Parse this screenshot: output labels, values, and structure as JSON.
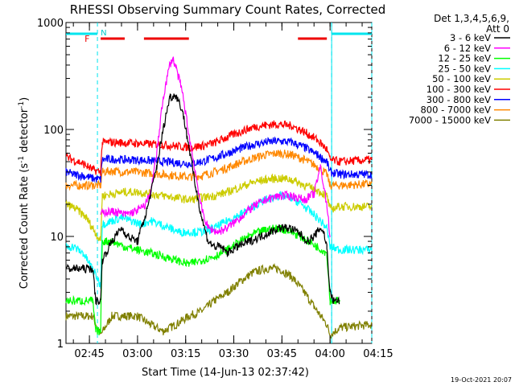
{
  "chart_data": {
    "type": "line",
    "title": "RHESSI Observing Summary Count Rates, Corrected",
    "xlabel": "Start Time (14-Jun-13 02:37:42)",
    "ylabel_main": "Corrected Count Rate (s",
    "ylabel_exp1": "-1",
    "ylabel_mid": " detector",
    "ylabel_exp2": "-1",
    "ylabel_end": ")",
    "ylog": true,
    "ylim": [
      1,
      1000
    ],
    "xlim_min": [
      37.7,
      133
    ],
    "x_ticks": [
      {
        "t": 45,
        "label": "02:45"
      },
      {
        "t": 60,
        "label": "03:00"
      },
      {
        "t": 75,
        "label": "03:15"
      },
      {
        "t": 90,
        "label": "03:30"
      },
      {
        "t": 105,
        "label": "03:45"
      },
      {
        "t": 120,
        "label": "04:00"
      },
      {
        "t": 135,
        "label": "04:15"
      }
    ],
    "y_ticks": [
      {
        "v": 1,
        "label": "1"
      },
      {
        "v": 10,
        "label": "10"
      },
      {
        "v": 100,
        "label": "100"
      },
      {
        "v": 1000,
        "label": "1000"
      }
    ],
    "legend_header": [
      "Det 1,3,4,5,6,9,",
      "Att 0"
    ],
    "series": [
      {
        "name": "3 - 6 keV",
        "color": "#000000",
        "points": [
          [
            37.7,
            5
          ],
          [
            46,
            5
          ],
          [
            47,
            2.5
          ],
          [
            48.5,
            2.5
          ],
          [
            49,
            6
          ],
          [
            52,
            9
          ],
          [
            55,
            12
          ],
          [
            57,
            10
          ],
          [
            60,
            9
          ],
          [
            63,
            18
          ],
          [
            66,
            45
          ],
          [
            68,
            100
          ],
          [
            70,
            200
          ],
          [
            72,
            210
          ],
          [
            74,
            150
          ],
          [
            76,
            70
          ],
          [
            78,
            30
          ],
          [
            80,
            15
          ],
          [
            82,
            9
          ],
          [
            84,
            8
          ],
          [
            86,
            8
          ],
          [
            88,
            7
          ],
          [
            91,
            8
          ],
          [
            95,
            9
          ],
          [
            100,
            10.5
          ],
          [
            104,
            12
          ],
          [
            107,
            12
          ],
          [
            110,
            11
          ],
          [
            113,
            9
          ],
          [
            115,
            10
          ],
          [
            117,
            12
          ],
          [
            118,
            11
          ],
          [
            119,
            8
          ],
          [
            120,
            3
          ],
          [
            121,
            2.5
          ],
          [
            123,
            2.5
          ]
        ]
      },
      {
        "name": "6 - 12 keV",
        "color": "#ff00ff",
        "points": [
          [
            48.5,
            16
          ],
          [
            50,
            17
          ],
          [
            53,
            17
          ],
          [
            56,
            16
          ],
          [
            59,
            17
          ],
          [
            62,
            19
          ],
          [
            64,
            25
          ],
          [
            66,
            60
          ],
          [
            68,
            200
          ],
          [
            70,
            400
          ],
          [
            71,
            460
          ],
          [
            72,
            380
          ],
          [
            74,
            220
          ],
          [
            76,
            90
          ],
          [
            78,
            40
          ],
          [
            80,
            18
          ],
          [
            82,
            12
          ],
          [
            85,
            11
          ],
          [
            88,
            12
          ],
          [
            92,
            15
          ],
          [
            96,
            19
          ],
          [
            100,
            22
          ],
          [
            104,
            24
          ],
          [
            108,
            24
          ],
          [
            112,
            22
          ],
          [
            115,
            25
          ],
          [
            117,
            45
          ],
          [
            118,
            30
          ],
          [
            119,
            20
          ],
          [
            120,
            10
          ]
        ]
      },
      {
        "name": "12 - 25 keV",
        "color": "#00ff00",
        "points": [
          [
            37.7,
            2.5
          ],
          [
            46,
            2.5
          ],
          [
            47,
            1.3
          ],
          [
            48.5,
            1.3
          ],
          [
            49,
            9
          ],
          [
            52,
            9
          ],
          [
            56,
            8
          ],
          [
            60,
            7.5
          ],
          [
            64,
            7
          ],
          [
            68,
            6.5
          ],
          [
            72,
            6
          ],
          [
            76,
            5.5
          ],
          [
            80,
            6
          ],
          [
            84,
            6.5
          ],
          [
            88,
            7.5
          ],
          [
            92,
            9
          ],
          [
            96,
            10.5
          ],
          [
            100,
            11.5
          ],
          [
            104,
            12
          ],
          [
            108,
            11
          ],
          [
            112,
            9.5
          ],
          [
            116,
            8
          ],
          [
            119,
            7
          ],
          [
            120,
            2.5
          ],
          [
            121,
            2.5
          ],
          [
            123,
            2.5
          ]
        ]
      },
      {
        "name": "25 - 50 keV",
        "color": "#00ffff",
        "points": [
          [
            37.7,
            8
          ],
          [
            40,
            8
          ],
          [
            43,
            7
          ],
          [
            46,
            5
          ],
          [
            48.5,
            3.5
          ],
          [
            49,
            13
          ],
          [
            52,
            14
          ],
          [
            55,
            15
          ],
          [
            58,
            14
          ],
          [
            61,
            13
          ],
          [
            64,
            14
          ],
          [
            67,
            13
          ],
          [
            70,
            12
          ],
          [
            73,
            11
          ],
          [
            76,
            11
          ],
          [
            80,
            11
          ],
          [
            84,
            12
          ],
          [
            88,
            14
          ],
          [
            92,
            16
          ],
          [
            96,
            19
          ],
          [
            100,
            22
          ],
          [
            104,
            24
          ],
          [
            108,
            23
          ],
          [
            112,
            19
          ],
          [
            116,
            15
          ],
          [
            119,
            12
          ],
          [
            120,
            8
          ],
          [
            123,
            7.5
          ],
          [
            133,
            7.5
          ]
        ]
      },
      {
        "name": "50 - 100 keV",
        "color": "#cccc00",
        "points": [
          [
            37.7,
            20
          ],
          [
            41,
            18
          ],
          [
            44,
            15
          ],
          [
            46,
            12
          ],
          [
            48.5,
            9
          ],
          [
            49,
            24
          ],
          [
            52,
            25
          ],
          [
            56,
            26
          ],
          [
            60,
            26
          ],
          [
            64,
            25
          ],
          [
            68,
            24
          ],
          [
            72,
            23
          ],
          [
            76,
            22
          ],
          [
            80,
            23
          ],
          [
            84,
            24
          ],
          [
            88,
            26
          ],
          [
            92,
            29
          ],
          [
            96,
            32
          ],
          [
            100,
            34
          ],
          [
            104,
            35
          ],
          [
            108,
            34
          ],
          [
            112,
            30
          ],
          [
            116,
            27
          ],
          [
            119,
            24
          ],
          [
            120,
            18
          ],
          [
            123,
            19
          ],
          [
            133,
            19
          ]
        ]
      },
      {
        "name": "100 - 300 keV",
        "color": "#ff0000",
        "points": [
          [
            37.7,
            55
          ],
          [
            40,
            52
          ],
          [
            43,
            48
          ],
          [
            46,
            42
          ],
          [
            48.5,
            40
          ],
          [
            49,
            75
          ],
          [
            52,
            76
          ],
          [
            56,
            75
          ],
          [
            60,
            74
          ],
          [
            64,
            73
          ],
          [
            68,
            72
          ],
          [
            72,
            70
          ],
          [
            76,
            68
          ],
          [
            80,
            70
          ],
          [
            84,
            75
          ],
          [
            88,
            85
          ],
          [
            92,
            95
          ],
          [
            96,
            105
          ],
          [
            100,
            110
          ],
          [
            104,
            112
          ],
          [
            108,
            108
          ],
          [
            112,
            95
          ],
          [
            116,
            80
          ],
          [
            119,
            65
          ],
          [
            120,
            52
          ],
          [
            123,
            50
          ],
          [
            133,
            52
          ]
        ]
      },
      {
        "name": "300 - 800 keV",
        "color": "#0000ff",
        "points": [
          [
            37.7,
            40
          ],
          [
            40,
            38
          ],
          [
            43,
            37
          ],
          [
            46,
            35
          ],
          [
            48.5,
            34
          ],
          [
            49,
            52
          ],
          [
            52,
            53
          ],
          [
            56,
            52
          ],
          [
            60,
            52
          ],
          [
            64,
            51
          ],
          [
            68,
            50
          ],
          [
            72,
            49
          ],
          [
            76,
            48
          ],
          [
            80,
            50
          ],
          [
            84,
            54
          ],
          [
            88,
            60
          ],
          [
            92,
            66
          ],
          [
            96,
            72
          ],
          [
            100,
            76
          ],
          [
            104,
            78
          ],
          [
            108,
            76
          ],
          [
            112,
            68
          ],
          [
            116,
            58
          ],
          [
            119,
            50
          ],
          [
            120,
            40
          ],
          [
            123,
            38
          ],
          [
            133,
            38
          ]
        ]
      },
      {
        "name": "800 - 7000 keV",
        "color": "#ff8800",
        "points": [
          [
            37.7,
            30
          ],
          [
            41,
            30
          ],
          [
            44,
            30
          ],
          [
            46,
            30
          ],
          [
            48.5,
            30
          ],
          [
            49,
            40
          ],
          [
            52,
            41
          ],
          [
            56,
            40
          ],
          [
            60,
            40
          ],
          [
            64,
            39
          ],
          [
            68,
            38
          ],
          [
            72,
            37
          ],
          [
            76,
            36
          ],
          [
            80,
            37
          ],
          [
            84,
            40
          ],
          [
            88,
            44
          ],
          [
            92,
            49
          ],
          [
            96,
            54
          ],
          [
            100,
            58
          ],
          [
            104,
            60
          ],
          [
            108,
            58
          ],
          [
            112,
            52
          ],
          [
            116,
            45
          ],
          [
            119,
            38
          ],
          [
            120,
            30
          ],
          [
            123,
            30
          ],
          [
            133,
            31
          ]
        ]
      },
      {
        "name": "7000 - 15000 keV",
        "color": "#808000",
        "points": [
          [
            37.7,
            1.8
          ],
          [
            46,
            1.8
          ],
          [
            48.5,
            1.2
          ],
          [
            52,
            1.8
          ],
          [
            56,
            1.8
          ],
          [
            60,
            1.8
          ],
          [
            64,
            1.5
          ],
          [
            68,
            1.3
          ],
          [
            72,
            1.5
          ],
          [
            76,
            1.8
          ],
          [
            80,
            2
          ],
          [
            84,
            2.5
          ],
          [
            88,
            3
          ],
          [
            92,
            3.8
          ],
          [
            96,
            4.6
          ],
          [
            100,
            5
          ],
          [
            104,
            5
          ],
          [
            108,
            4.2
          ],
          [
            112,
            3
          ],
          [
            116,
            2
          ],
          [
            119,
            1.5
          ],
          [
            120,
            1.2
          ],
          [
            123,
            1.4
          ],
          [
            133,
            1.5
          ]
        ]
      }
    ],
    "flags": {
      "night_cyan": [
        [
          37.7,
          47.5
        ],
        [
          120.5,
          133
        ]
      ],
      "saa_dashed_times": [
        47.5,
        120.5,
        133
      ],
      "flare_red": [
        [
          48.5,
          56
        ],
        [
          62,
          76
        ],
        [
          110,
          119
        ]
      ],
      "flare_label": "F",
      "n_label": "N"
    }
  },
  "timestamp": "19-Oct-2021 20:07"
}
